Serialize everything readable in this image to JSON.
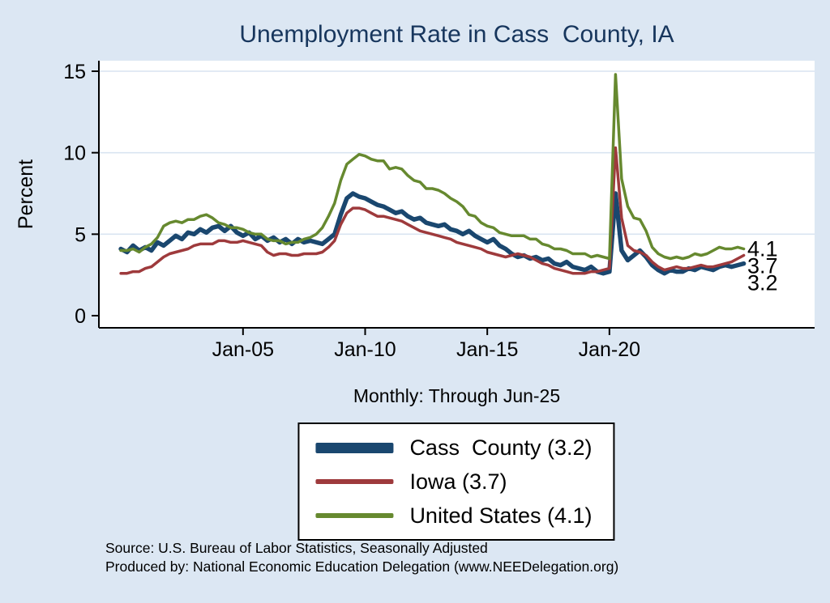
{
  "title": {
    "text": "Unemployment Rate in Cass  County, IA",
    "color": "#17365d"
  },
  "subtitle": "Monthly: Through Jun-25",
  "axes": {
    "ylabel": "Percent",
    "y_ticks": [
      0,
      5,
      10,
      15
    ],
    "x_ticks": [
      {
        "year": 2005,
        "label": "Jan-05"
      },
      {
        "year": 2010,
        "label": "Jan-10"
      },
      {
        "year": 2015,
        "label": "Jan-15"
      },
      {
        "year": 2020,
        "label": "Jan-20"
      }
    ]
  },
  "end_labels": [
    {
      "text": "4.1",
      "value": 4.1
    },
    {
      "text": "3.7",
      "value": 3.7
    },
    {
      "text": "3.2",
      "value": 3.2
    }
  ],
  "legend": {
    "items": [
      {
        "label": "Cass  County (3.2)",
        "color": "#1a476f",
        "thickness": 13
      },
      {
        "label": "Iowa (3.7)",
        "color": "#9e3a3c",
        "thickness": 6
      },
      {
        "label": "United States (4.1)",
        "color": "#66892f",
        "thickness": 6
      }
    ]
  },
  "source": {
    "line1": "Source: U.S. Bureau of Labor Statistics, Seasonally Adjusted",
    "line2": "Produced by: National Economic Education Delegation (www.NEEDelegation.org)"
  },
  "colors": {
    "background": "#dce7f3",
    "plot_bg": "#ffffff",
    "grid": "#d9e4f1",
    "axis": "#000000"
  },
  "chart_data": {
    "type": "line",
    "title": "Unemployment Rate in Cass  County, IA",
    "xlabel": "",
    "ylabel": "Percent",
    "x_start": 2000.0,
    "x_step": 0.25,
    "x_end": 2025.5,
    "xlim": [
      1999.1,
      2028.4
    ],
    "ylim": [
      0,
      15.5
    ],
    "grid": "horizontal",
    "legend_position": "below",
    "series": [
      {
        "name": "Cass County",
        "color": "#1a476f",
        "width": 5.5,
        "final_value": 3.2,
        "values": [
          4.1,
          3.9,
          4.3,
          4.0,
          4.2,
          4.0,
          4.5,
          4.3,
          4.6,
          4.9,
          4.7,
          5.1,
          5.0,
          5.3,
          5.1,
          5.4,
          5.5,
          5.2,
          5.5,
          5.1,
          4.9,
          5.1,
          4.7,
          4.9,
          4.6,
          4.8,
          4.5,
          4.7,
          4.4,
          4.7,
          4.5,
          4.6,
          4.5,
          4.4,
          4.7,
          5.0,
          6.2,
          7.2,
          7.5,
          7.3,
          7.2,
          7.0,
          6.8,
          6.7,
          6.5,
          6.3,
          6.4,
          6.1,
          5.9,
          6.0,
          5.7,
          5.6,
          5.5,
          5.6,
          5.3,
          5.2,
          5.0,
          5.2,
          4.9,
          4.7,
          4.5,
          4.7,
          4.3,
          4.1,
          3.8,
          3.6,
          3.7,
          3.5,
          3.6,
          3.4,
          3.5,
          3.2,
          3.1,
          3.3,
          3.0,
          2.9,
          2.8,
          3.0,
          2.7,
          2.6,
          2.7,
          7.5,
          4.0,
          3.4,
          3.7,
          4.0,
          3.6,
          3.1,
          2.8,
          2.6,
          2.8,
          2.7,
          2.7,
          2.9,
          2.8,
          3.0,
          2.9,
          2.8,
          3.0,
          3.1,
          3.0,
          3.1,
          3.2
        ]
      },
      {
        "name": "Iowa",
        "color": "#9e3a3c",
        "width": 3.5,
        "final_value": 3.7,
        "values": [
          2.6,
          2.6,
          2.7,
          2.7,
          2.9,
          3.0,
          3.3,
          3.6,
          3.8,
          3.9,
          4.0,
          4.1,
          4.3,
          4.4,
          4.4,
          4.4,
          4.6,
          4.6,
          4.5,
          4.5,
          4.6,
          4.5,
          4.4,
          4.3,
          3.9,
          3.7,
          3.8,
          3.8,
          3.7,
          3.7,
          3.8,
          3.8,
          3.8,
          3.9,
          4.2,
          4.6,
          5.6,
          6.3,
          6.6,
          6.6,
          6.5,
          6.3,
          6.1,
          6.1,
          6.0,
          5.9,
          5.8,
          5.6,
          5.4,
          5.2,
          5.1,
          5.0,
          4.9,
          4.8,
          4.7,
          4.5,
          4.4,
          4.3,
          4.2,
          4.1,
          3.9,
          3.8,
          3.7,
          3.6,
          3.7,
          3.8,
          3.7,
          3.6,
          3.4,
          3.2,
          3.1,
          2.9,
          2.8,
          2.7,
          2.6,
          2.6,
          2.6,
          2.7,
          2.7,
          2.8,
          2.9,
          10.3,
          6.0,
          4.3,
          4.0,
          3.9,
          3.7,
          3.3,
          3.0,
          2.8,
          2.9,
          3.0,
          2.9,
          2.9,
          3.0,
          3.1,
          3.0,
          3.0,
          3.1,
          3.2,
          3.3,
          3.5,
          3.7
        ]
      },
      {
        "name": "United States",
        "color": "#66892f",
        "width": 3.5,
        "final_value": 4.1,
        "values": [
          4.0,
          4.0,
          4.1,
          3.9,
          4.2,
          4.4,
          4.8,
          5.5,
          5.7,
          5.8,
          5.7,
          5.9,
          5.9,
          6.1,
          6.2,
          6.0,
          5.7,
          5.6,
          5.4,
          5.4,
          5.3,
          5.1,
          5.0,
          5.0,
          4.7,
          4.6,
          4.6,
          4.4,
          4.5,
          4.5,
          4.7,
          4.8,
          5.0,
          5.4,
          6.1,
          6.9,
          8.3,
          9.3,
          9.6,
          9.9,
          9.8,
          9.6,
          9.5,
          9.5,
          9.0,
          9.1,
          9.0,
          8.6,
          8.3,
          8.2,
          7.8,
          7.8,
          7.7,
          7.5,
          7.2,
          7.0,
          6.7,
          6.2,
          6.1,
          5.7,
          5.5,
          5.4,
          5.1,
          5.0,
          4.9,
          4.9,
          4.9,
          4.7,
          4.7,
          4.4,
          4.3,
          4.1,
          4.1,
          4.0,
          3.8,
          3.8,
          3.8,
          3.6,
          3.7,
          3.6,
          3.5,
          14.8,
          8.4,
          6.7,
          6.0,
          5.9,
          5.2,
          4.2,
          3.8,
          3.6,
          3.5,
          3.6,
          3.5,
          3.6,
          3.8,
          3.7,
          3.8,
          4.0,
          4.2,
          4.1,
          4.1,
          4.2,
          4.1
        ]
      }
    ]
  }
}
